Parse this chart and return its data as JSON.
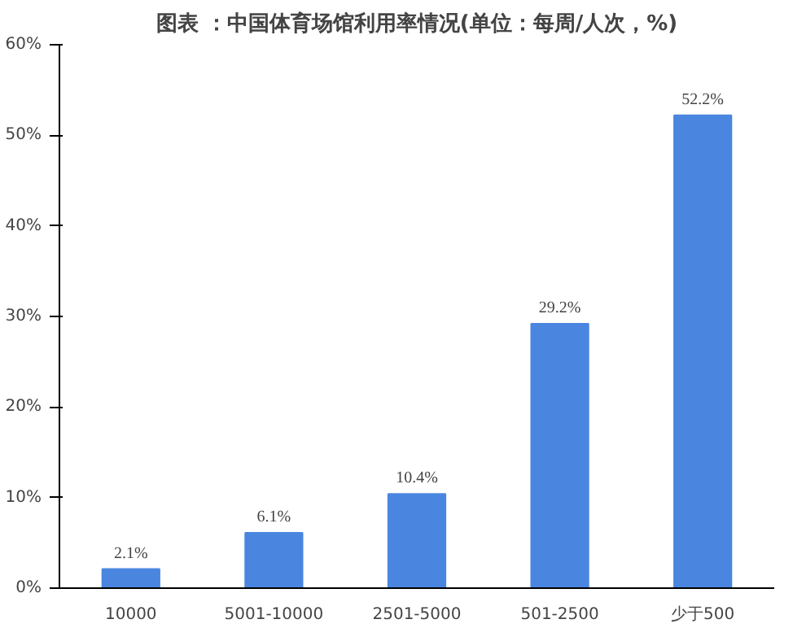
{
  "chart_data": {
    "type": "bar",
    "title": "图表 ：中国体育场馆利用率情况(单位：每周/人次，%)",
    "categories": [
      "10000",
      "5001-10000",
      "2501-5000",
      "501-2500",
      "少于500"
    ],
    "values": [
      2.1,
      6.1,
      10.4,
      29.2,
      52.2
    ],
    "value_labels": [
      "2.1%",
      "6.1%",
      "10.4%",
      "29.2%",
      "52.2%"
    ],
    "color": "#4a86e0",
    "ylim": [
      0,
      60
    ],
    "yticks": [
      {
        "value": 0,
        "label": "0%"
      },
      {
        "value": 10,
        "label": "10%"
      },
      {
        "value": 20,
        "label": "20%"
      },
      {
        "value": 30,
        "label": "30%"
      },
      {
        "value": 40,
        "label": "40%"
      },
      {
        "value": 50,
        "label": "50%"
      },
      {
        "value": 60,
        "label": "60%"
      }
    ],
    "grid": false
  }
}
